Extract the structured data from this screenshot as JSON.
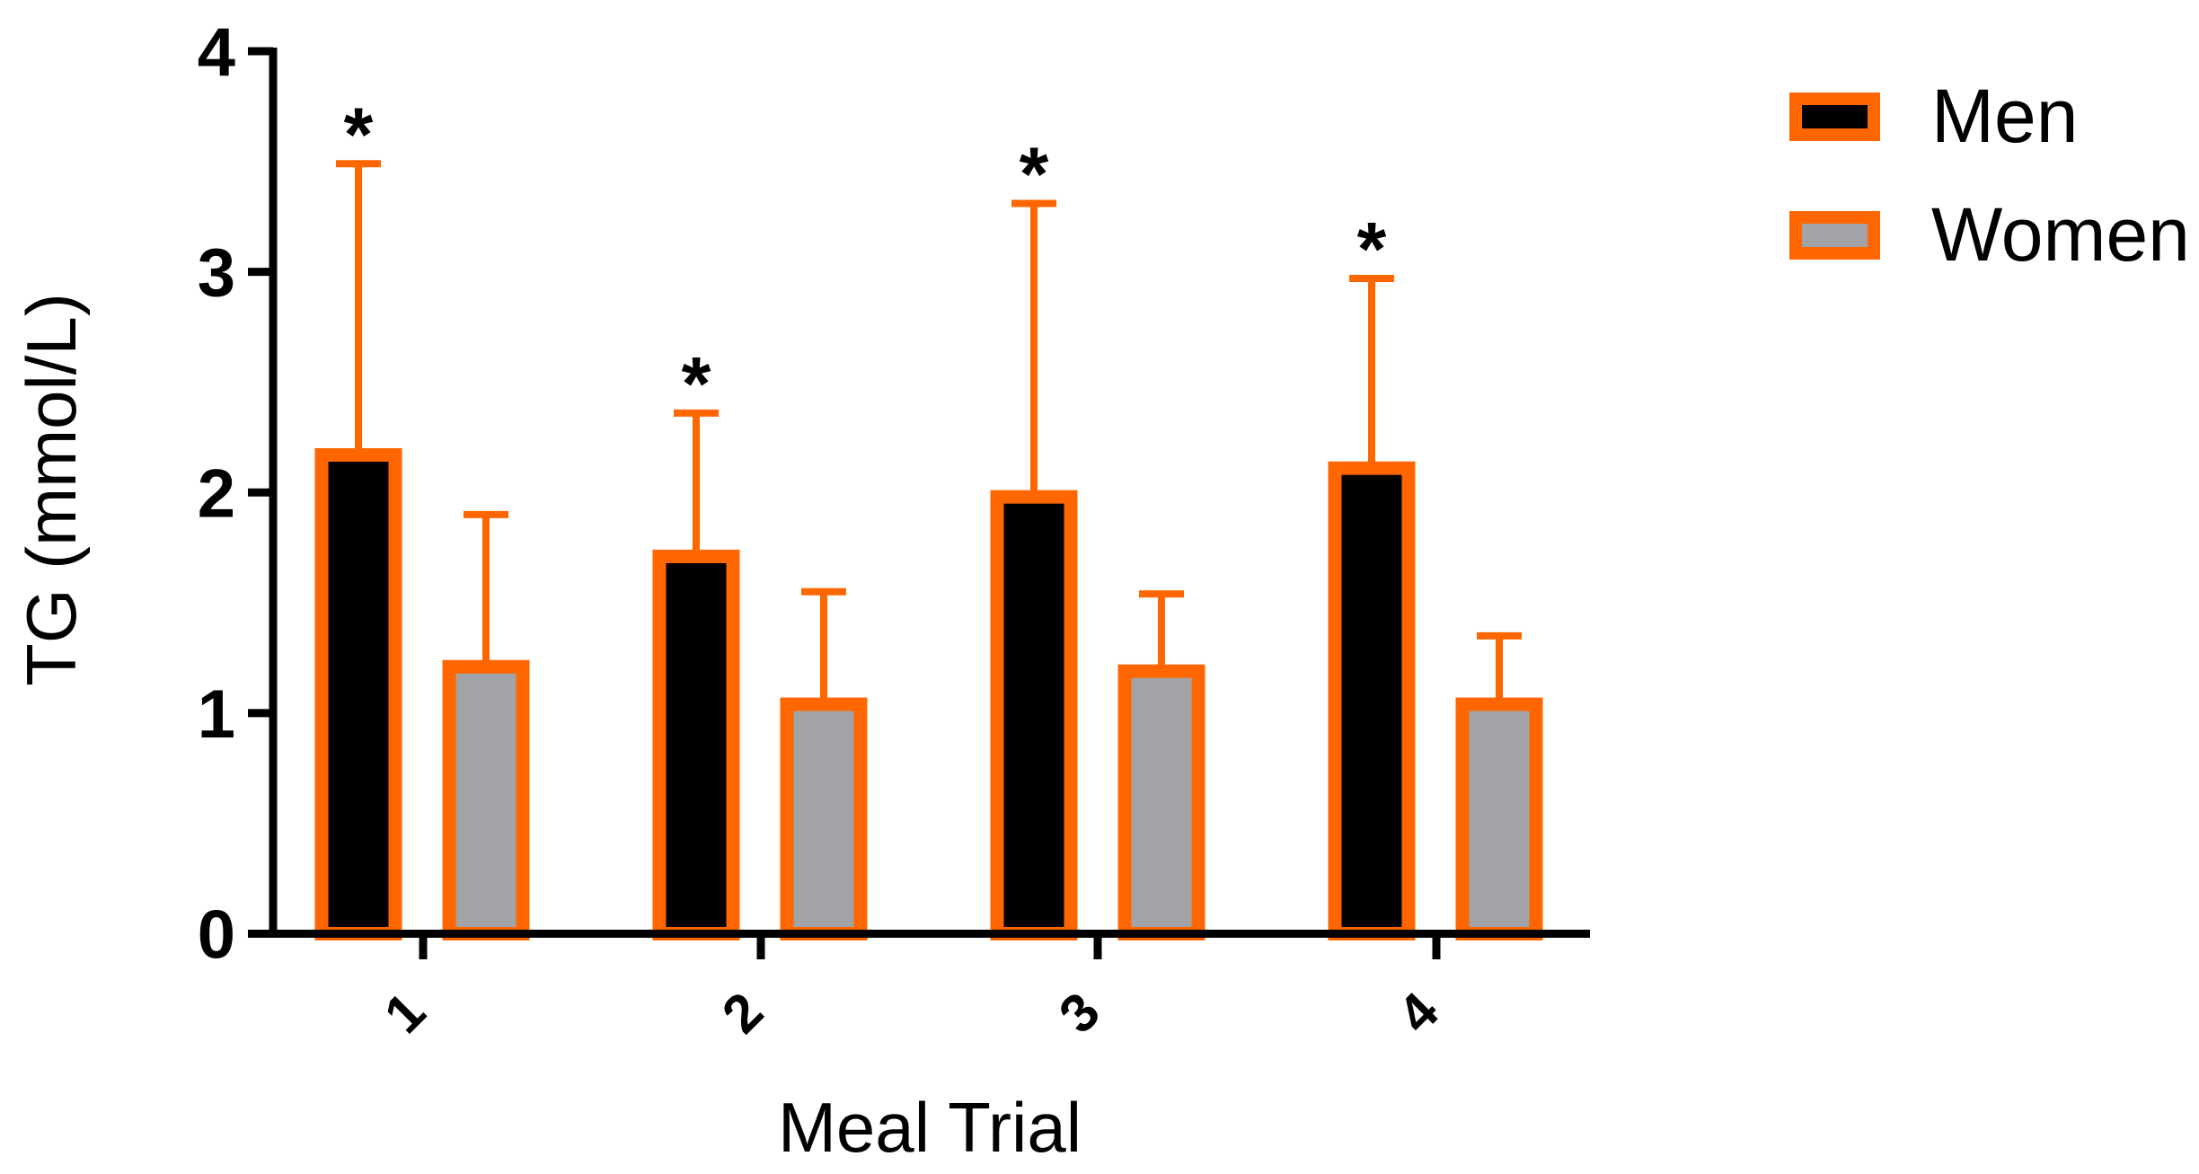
{
  "chart_data": {
    "type": "bar",
    "title": "",
    "xlabel": "Meal Trial",
    "ylabel": "TG (mmol/L)",
    "categories": [
      "1",
      "2",
      "3",
      "4"
    ],
    "ylim": [
      0,
      4
    ],
    "yticks": [
      "0",
      "1",
      "2",
      "3",
      "4"
    ],
    "grid": false,
    "legend_position": "top-right",
    "series": [
      {
        "name": "Men",
        "values": [
          2.17,
          1.71,
          1.98,
          2.11
        ],
        "error_upper": [
          3.49,
          2.36,
          3.31,
          2.97
        ],
        "fill": "#000000",
        "stroke": "#ff6600"
      },
      {
        "name": "Women",
        "values": [
          1.21,
          1.04,
          1.19,
          1.04
        ],
        "error_upper": [
          1.9,
          1.55,
          1.54,
          1.35
        ],
        "fill": "#a2a3a6",
        "stroke": "#ff6600"
      }
    ],
    "annotations": [
      {
        "text": "*",
        "category": "1",
        "series": "Men"
      },
      {
        "text": "*",
        "category": "2",
        "series": "Men"
      },
      {
        "text": "*",
        "category": "3",
        "series": "Men"
      },
      {
        "text": "*",
        "category": "4",
        "series": "Men"
      }
    ]
  },
  "colors": {
    "axis": "#000000",
    "bar_stroke": "#ff6600",
    "men_fill": "#000000",
    "women_fill": "#a2a3a6"
  }
}
